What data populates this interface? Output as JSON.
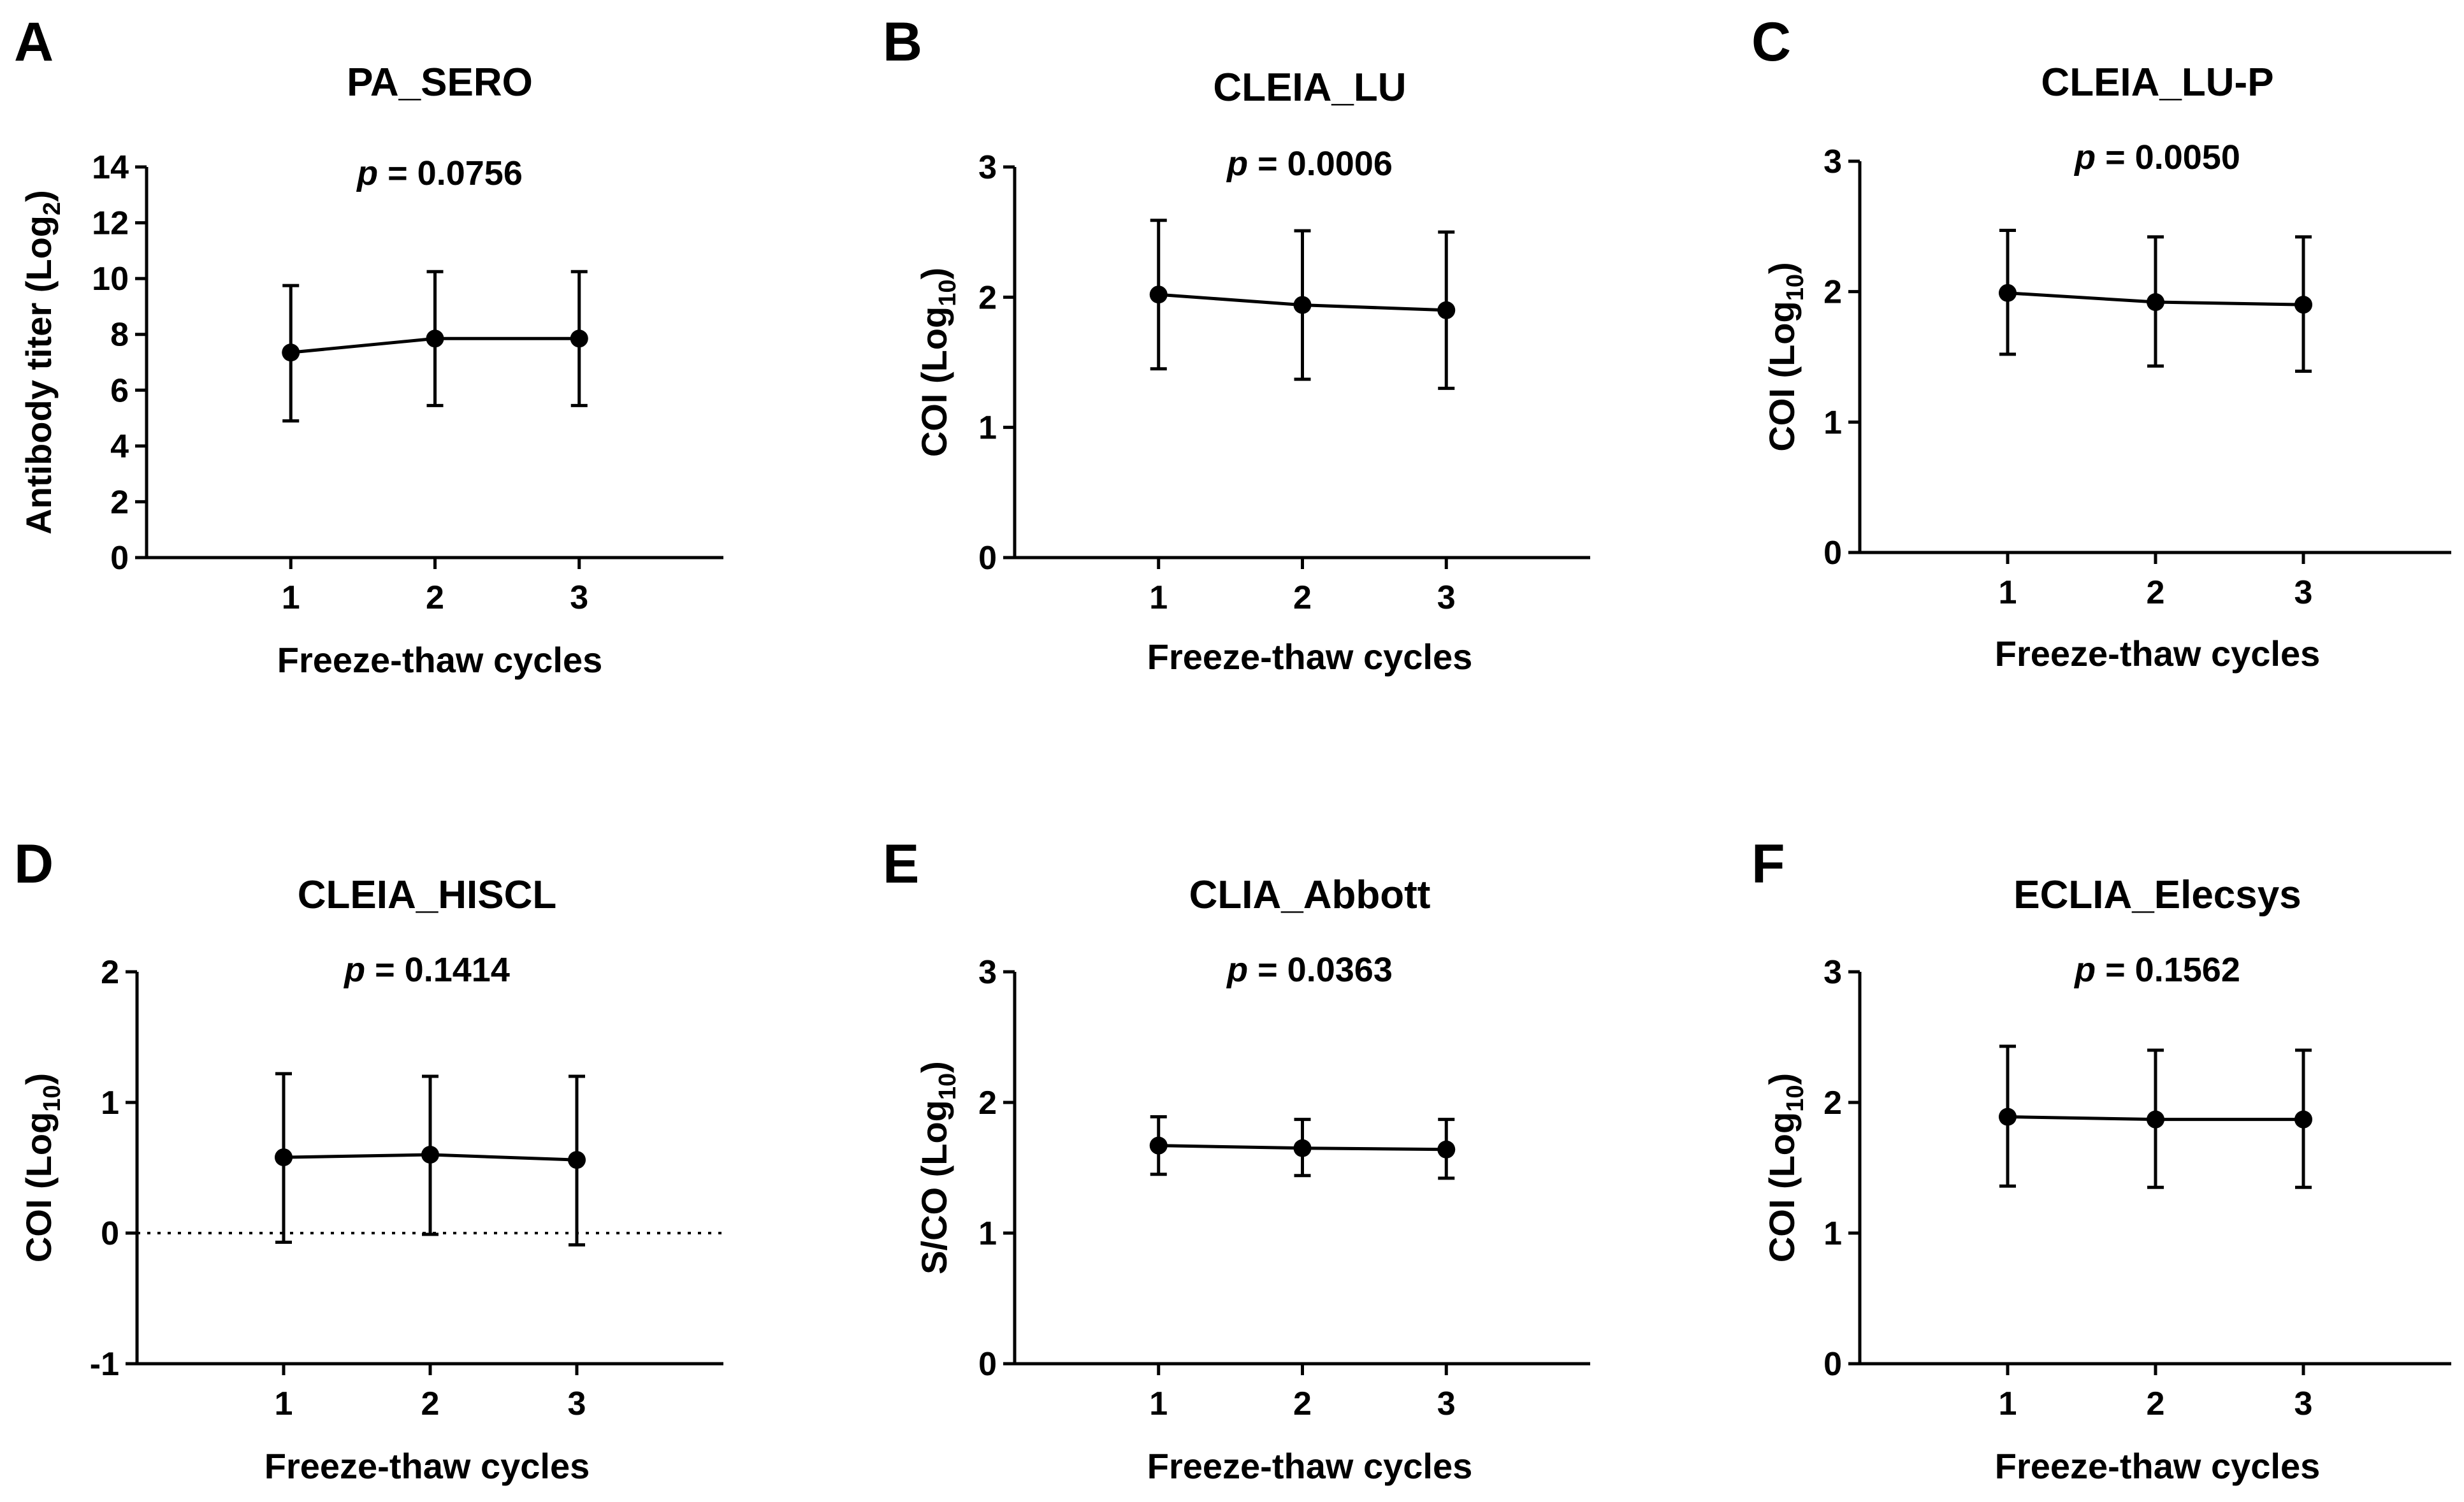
{
  "chart_data": [
    {
      "panel": "A",
      "type": "line",
      "title": "PA_SERO",
      "p_label": "p",
      "p_value": "= 0.0756",
      "xlabel": "Freeze-thaw cycles",
      "ylabel": "Antibody titer (Log",
      "ylabel_sub": "2",
      "ylabel_tail": ")",
      "x": [
        1,
        2,
        3
      ],
      "x_ticks": [
        "1",
        "2",
        "3"
      ],
      "xlim": [
        0.0,
        4.0
      ],
      "y": [
        7.35,
        7.85,
        7.85
      ],
      "err_low": [
        4.9,
        5.45,
        5.45
      ],
      "err_high": [
        9.75,
        10.25,
        10.25
      ],
      "ylim": [
        0,
        14
      ],
      "y_ticks": [
        0,
        2,
        4,
        6,
        8,
        10,
        12,
        14
      ],
      "y_tick_labels": [
        "0",
        "2",
        "4",
        "6",
        "8",
        "10",
        "12",
        "14"
      ],
      "dotted_zero_line": false
    },
    {
      "panel": "B",
      "type": "line",
      "title": "CLEIA_LU",
      "p_label": "p",
      "p_value": "= 0.0006",
      "xlabel": "Freeze-thaw cycles",
      "ylabel": "COI (Log",
      "ylabel_sub": "10",
      "ylabel_tail": ")",
      "x": [
        1,
        2,
        3
      ],
      "x_ticks": [
        "1",
        "2",
        "3"
      ],
      "xlim": [
        0.0,
        4.0
      ],
      "y": [
        2.02,
        1.94,
        1.9
      ],
      "err_low": [
        1.45,
        1.37,
        1.3
      ],
      "err_high": [
        2.59,
        2.51,
        2.5
      ],
      "ylim": [
        0,
        3
      ],
      "y_ticks": [
        0,
        1,
        2,
        3
      ],
      "y_tick_labels": [
        "0",
        "1",
        "2",
        "3"
      ],
      "dotted_zero_line": false
    },
    {
      "panel": "C",
      "type": "line",
      "title": "CLEIA_LU-P",
      "p_label": "p",
      "p_value": "= 0.0050",
      "xlabel": "Freeze-thaw cycles",
      "ylabel": "COI (Log",
      "ylabel_sub": "10",
      "ylabel_tail": ")",
      "x": [
        1,
        2,
        3
      ],
      "x_ticks": [
        "1",
        "2",
        "3"
      ],
      "xlim": [
        0.0,
        4.0
      ],
      "y": [
        1.99,
        1.92,
        1.9
      ],
      "err_low": [
        1.52,
        1.43,
        1.39
      ],
      "err_high": [
        2.47,
        2.42,
        2.42
      ],
      "ylim": [
        0,
        3
      ],
      "y_ticks": [
        0,
        1,
        2,
        3
      ],
      "y_tick_labels": [
        "0",
        "1",
        "2",
        "3"
      ],
      "dotted_zero_line": false
    },
    {
      "panel": "D",
      "type": "line",
      "title": "CLEIA_HISCL",
      "p_label": "p",
      "p_value": "= 0.1414",
      "xlabel": "Freeze-thaw cycles",
      "ylabel": "COI (Log",
      "ylabel_sub": "10",
      "ylabel_tail": ")",
      "x": [
        1,
        2,
        3
      ],
      "x_ticks": [
        "1",
        "2",
        "3"
      ],
      "xlim": [
        0.0,
        4.0
      ],
      "y": [
        0.58,
        0.6,
        0.56
      ],
      "err_low": [
        -0.07,
        -0.01,
        -0.09
      ],
      "err_high": [
        1.22,
        1.2,
        1.2
      ],
      "ylim": [
        -1,
        2
      ],
      "y_ticks": [
        -1,
        0,
        1,
        2
      ],
      "y_tick_labels": [
        "-1",
        "0",
        "1",
        "2"
      ],
      "dotted_zero_line": true
    },
    {
      "panel": "E",
      "type": "line",
      "title": "CLIA_Abbott",
      "p_label": "p",
      "p_value": "= 0.0363",
      "xlabel": "Freeze-thaw cycles",
      "ylabel": "S/CO (Log",
      "ylabel_sub": "10",
      "ylabel_tail": ")",
      "x": [
        1,
        2,
        3
      ],
      "x_ticks": [
        "1",
        "2",
        "3"
      ],
      "xlim": [
        0.0,
        4.0
      ],
      "y": [
        1.67,
        1.65,
        1.64
      ],
      "err_low": [
        1.45,
        1.44,
        1.42
      ],
      "err_high": [
        1.89,
        1.87,
        1.87
      ],
      "ylim": [
        0,
        3
      ],
      "y_ticks": [
        0,
        1,
        2,
        3
      ],
      "y_tick_labels": [
        "0",
        "1",
        "2",
        "3"
      ],
      "dotted_zero_line": false
    },
    {
      "panel": "F",
      "type": "line",
      "title": "ECLIA_Elecsys",
      "p_label": "p",
      "p_value": "= 0.1562",
      "xlabel": "Freeze-thaw cycles",
      "ylabel": "COI (Log",
      "ylabel_sub": "10",
      "ylabel_tail": ")",
      "x": [
        1,
        2,
        3
      ],
      "x_ticks": [
        "1",
        "2",
        "3"
      ],
      "xlim": [
        0.0,
        4.0
      ],
      "y": [
        1.89,
        1.87,
        1.87
      ],
      "err_low": [
        1.36,
        1.35,
        1.35
      ],
      "err_high": [
        2.43,
        2.4,
        2.4
      ],
      "ylim": [
        0,
        3
      ],
      "y_ticks": [
        0,
        1,
        2,
        3
      ],
      "y_tick_labels": [
        "0",
        "1",
        "2",
        "3"
      ],
      "dotted_zero_line": false
    }
  ]
}
